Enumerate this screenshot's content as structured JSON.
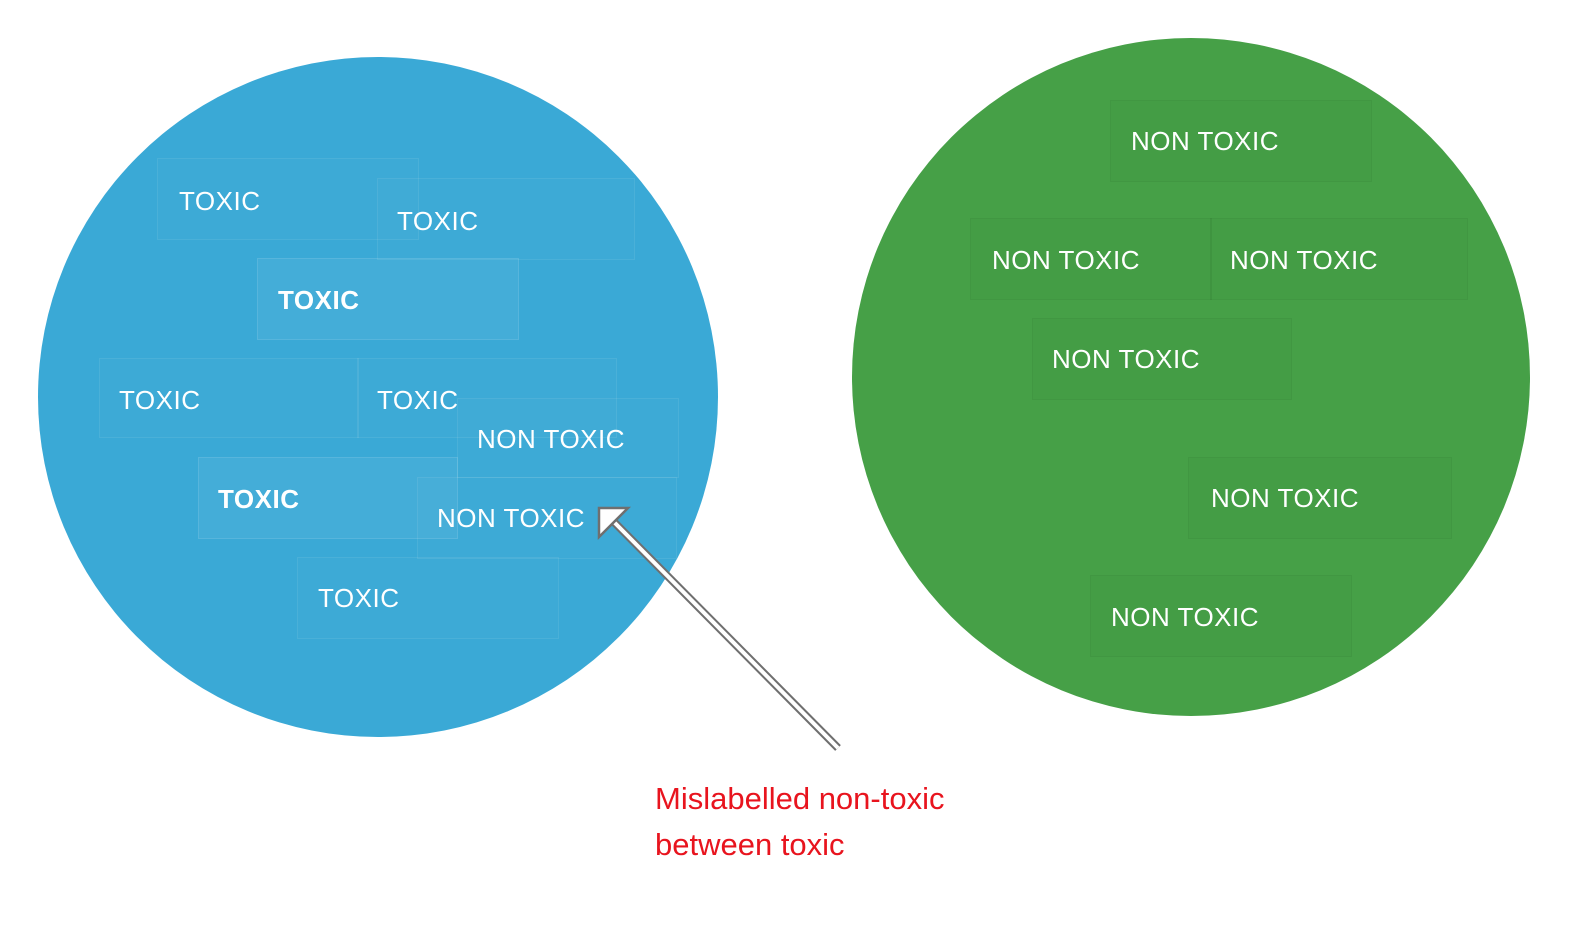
{
  "toxic_cluster": {
    "color": "#3aa9d6",
    "labels": [
      "TOXIC",
      "TOXIC",
      "TOXIC",
      "TOXIC",
      "TOXIC",
      "NON TOXIC",
      "TOXIC",
      "NON TOXIC",
      "TOXIC"
    ]
  },
  "nontoxic_cluster": {
    "color": "#46a047",
    "labels": [
      "NON TOXIC",
      "NON TOXIC",
      "NON TOXIC",
      "NON TOXIC",
      "NON TOXIC",
      "NON TOXIC"
    ]
  },
  "annotation": {
    "line1": "Mislabelled non-toxic",
    "line2": "between toxic",
    "color": "#e8141e"
  }
}
